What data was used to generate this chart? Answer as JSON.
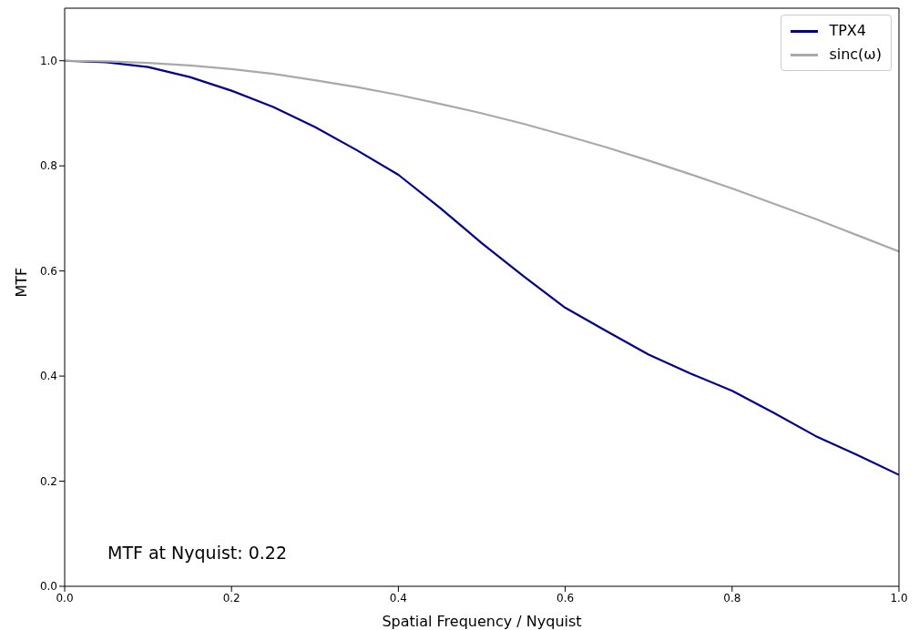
{
  "chart_data": {
    "type": "line",
    "xlabel": "Spatial Frequency / Nyquist",
    "ylabel": "MTF",
    "x": [
      0,
      0.05,
      0.1,
      0.15,
      0.2,
      0.25,
      0.3,
      0.35,
      0.4,
      0.45,
      0.5,
      0.55,
      0.6,
      0.65,
      0.7,
      0.75,
      0.8,
      0.85,
      0.9,
      0.95,
      1.0
    ],
    "series": [
      {
        "name": "TPX4",
        "color": "#00008b",
        "values": [
          1.0,
          0.997,
          0.988,
          0.969,
          0.943,
          0.912,
          0.874,
          0.83,
          0.783,
          0.72,
          0.653,
          0.59,
          0.53,
          0.485,
          0.441,
          0.405,
          0.372,
          0.33,
          0.286,
          0.25,
          0.212
        ]
      },
      {
        "name": "sinc(ω)",
        "color": "#a9a9a9",
        "values": [
          1.0,
          0.999,
          0.996,
          0.991,
          0.984,
          0.975,
          0.963,
          0.95,
          0.935,
          0.918,
          0.9,
          0.88,
          0.858,
          0.835,
          0.81,
          0.784,
          0.757,
          0.728,
          0.699,
          0.668,
          0.637
        ]
      }
    ],
    "xlim": [
      0,
      1
    ],
    "ylim": [
      0,
      1.1
    ],
    "xticks": [
      {
        "value": 0,
        "label": "0.0"
      },
      0.2,
      0.4,
      0.6,
      0.8,
      {
        "value": 1,
        "label": "1.0"
      }
    ],
    "yticks": [
      {
        "value": 0,
        "label": "0.0"
      },
      0.2,
      0.4,
      0.6,
      0.8,
      {
        "value": 1,
        "label": "1.0"
      }
    ],
    "grid": false,
    "legend": "top right",
    "line_style": "solid",
    "marker": "none",
    "annotations": [
      "MTF at Nyquist: 0.22"
    ]
  }
}
